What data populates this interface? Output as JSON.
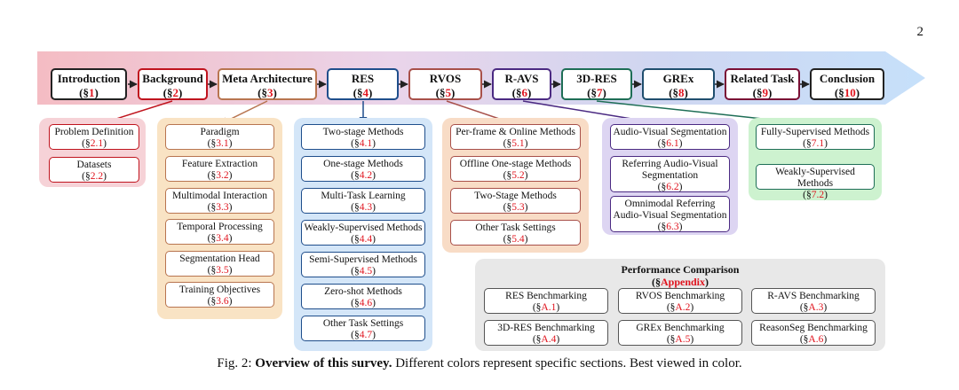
{
  "page_number": "2",
  "sections": [
    {
      "title": "Introduction",
      "ref": "1"
    },
    {
      "title": "Background",
      "ref": "2"
    },
    {
      "title": "Meta Architecture",
      "ref": "3"
    },
    {
      "title": "RES",
      "ref": "4"
    },
    {
      "title": "RVOS",
      "ref": "5"
    },
    {
      "title": "R-AVS",
      "ref": "6"
    },
    {
      "title": "3D-RES",
      "ref": "7"
    },
    {
      "title": "GREx",
      "ref": "8"
    },
    {
      "title": "Related Task",
      "ref": "9"
    },
    {
      "title": "Conclusion",
      "ref": "10"
    }
  ],
  "sec_symbol": "§",
  "colors": {
    "introduction": "#222222",
    "background": "#c0141e",
    "meta": "#b87550",
    "res": "#1f4e8c",
    "rvos": "#a8504a",
    "ravs": "#4b2a82",
    "res3d": "#1e6e56",
    "grex": "#1f4e6e",
    "related": "#7a1035",
    "conclusion": "#222222",
    "ref_red": "#e0141e"
  },
  "background_items": [
    {
      "title": "Problem Definition",
      "ref": "2.1"
    },
    {
      "title": "Datasets",
      "ref": "2.2"
    }
  ],
  "meta_items": [
    {
      "title": "Paradigm",
      "ref": "3.1"
    },
    {
      "title": "Feature Extraction",
      "ref": "3.2"
    },
    {
      "title": "Multimodal Interaction",
      "ref": "3.3"
    },
    {
      "title": "Temporal Processing",
      "ref": "3.4"
    },
    {
      "title": "Segmentation Head",
      "ref": "3.5"
    },
    {
      "title": "Training Objectives",
      "ref": "3.6"
    }
  ],
  "res_items": [
    {
      "title": "Two-stage Methods",
      "ref": "4.1"
    },
    {
      "title": "One-stage Methods",
      "ref": "4.2"
    },
    {
      "title": "Multi-Task Learning",
      "ref": "4.3"
    },
    {
      "title": "Weakly-Supervised Methods",
      "ref": "4.4"
    },
    {
      "title": "Semi-Supervised Methods",
      "ref": "4.5"
    },
    {
      "title": "Zero-shot Methods",
      "ref": "4.6"
    },
    {
      "title": "Other Task Settings",
      "ref": "4.7"
    }
  ],
  "rvos_items": [
    {
      "title": "Per-frame & Online Methods",
      "ref": "5.1"
    },
    {
      "title": "Offline One-stage Methods",
      "ref": "5.2"
    },
    {
      "title": "Two-Stage Methods",
      "ref": "5.3"
    },
    {
      "title": "Other Task Settings",
      "ref": "5.4"
    }
  ],
  "ravs_items": [
    {
      "title": "Audio-Visual Segmentation",
      "ref": "6.1"
    },
    {
      "title": "Referring Audio-Visual Segmentation",
      "ref": "6.2"
    },
    {
      "title": "Omnimodal Referring Audio-Visual Segmentation",
      "ref": "6.3"
    }
  ],
  "res3d_items": [
    {
      "title": "Fully-Supervised Methods",
      "ref": "7.1"
    },
    {
      "title": "Weakly-Supervised Methods",
      "ref": "7.2"
    }
  ],
  "performance": {
    "title": "Performance Comparison",
    "ref": "Appendix",
    "items": [
      {
        "title": "RES Benchmarking",
        "ref": "A.1"
      },
      {
        "title": "RVOS Benchmarking",
        "ref": "A.2"
      },
      {
        "title": "R-AVS Benchmarking",
        "ref": "A.3"
      },
      {
        "title": "3D-RES Benchmarking",
        "ref": "A.4"
      },
      {
        "title": "GREx Benchmarking",
        "ref": "A.5"
      },
      {
        "title": "ReasonSeg Benchmarking",
        "ref": "A.6"
      }
    ]
  },
  "caption": {
    "label": "Fig. 2:",
    "bold": "Overview of this survey.",
    "text": "Different colors represent specific sections. Best viewed in color."
  }
}
